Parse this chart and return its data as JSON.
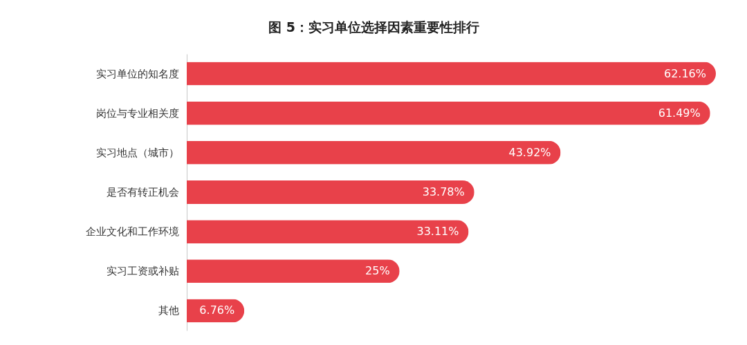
{
  "chart_data": {
    "type": "bar",
    "orientation": "horizontal",
    "title": "图 5：实习单位选择因素重要性排行",
    "categories": [
      "实习单位的知名度",
      "岗位与专业相关度",
      "实习地点（城市）",
      "是否有转正机会",
      "企业文化和工作环境",
      "实习工资或补贴",
      "其他"
    ],
    "values": [
      62.16,
      61.49,
      43.92,
      33.78,
      33.11,
      25,
      6.76
    ],
    "value_labels": [
      "62.16%",
      "61.49%",
      "43.92%",
      "33.78%",
      "33.11%",
      "25%",
      "6.76%"
    ],
    "color": "#e8414a"
  }
}
